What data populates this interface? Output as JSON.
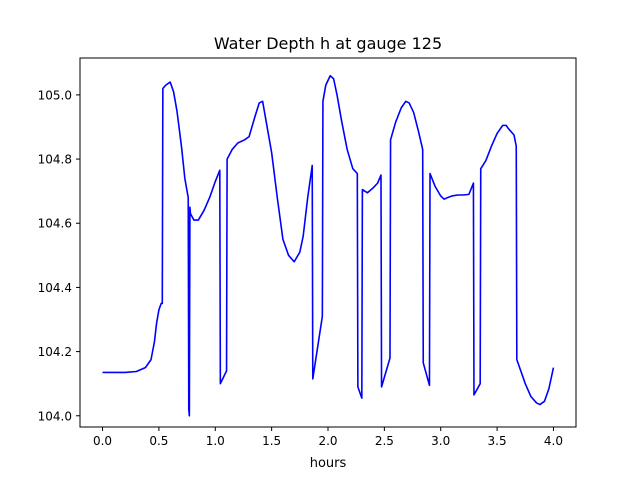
{
  "chart_data": {
    "type": "line",
    "title": "Water Depth h at gauge 125",
    "xlabel": "hours",
    "ylabel": "",
    "xlim": [
      -0.2,
      4.2
    ],
    "ylim": [
      103.965,
      105.115
    ],
    "xticks": [
      0.0,
      0.5,
      1.0,
      1.5,
      2.0,
      2.5,
      3.0,
      3.5,
      4.0
    ],
    "xtick_labels": [
      "0.0",
      "0.5",
      "1.0",
      "1.5",
      "2.0",
      "2.5",
      "3.0",
      "3.5",
      "4.0"
    ],
    "yticks": [
      104.0,
      104.2,
      104.4,
      104.6,
      104.8,
      105.0
    ],
    "ytick_labels": [
      "104.0",
      "104.2",
      "104.4",
      "104.6",
      "104.8",
      "105.0"
    ],
    "grid": false,
    "legend": "none",
    "series": [
      {
        "color": "#0000ff",
        "x": [
          0.0,
          0.05,
          0.2,
          0.3,
          0.38,
          0.43,
          0.46,
          0.48,
          0.5,
          0.52,
          0.53,
          0.535,
          0.56,
          0.6,
          0.63,
          0.66,
          0.7,
          0.73,
          0.76,
          0.765,
          0.77,
          0.775,
          0.78,
          0.81,
          0.85,
          0.9,
          0.95,
          1.0,
          1.04,
          1.045,
          1.1,
          1.105,
          1.15,
          1.2,
          1.26,
          1.3,
          1.35,
          1.39,
          1.42,
          1.45,
          1.5,
          1.55,
          1.6,
          1.65,
          1.7,
          1.75,
          1.78,
          1.82,
          1.86,
          1.865,
          1.95,
          1.955,
          1.98,
          2.02,
          2.05,
          2.08,
          2.12,
          2.17,
          2.22,
          2.26,
          2.265,
          2.3,
          2.305,
          2.35,
          2.4,
          2.44,
          2.47,
          2.475,
          2.55,
          2.555,
          2.6,
          2.65,
          2.69,
          2.72,
          2.76,
          2.8,
          2.84,
          2.845,
          2.9,
          2.905,
          2.95,
          3.0,
          3.03,
          3.06,
          3.1,
          3.15,
          3.2,
          3.25,
          3.29,
          3.295,
          3.35,
          3.355,
          3.4,
          3.45,
          3.5,
          3.55,
          3.58,
          3.6,
          3.65,
          3.67,
          3.675,
          3.7,
          3.75,
          3.8,
          3.85,
          3.88,
          3.92,
          3.96,
          4.0
        ],
        "y": [
          104.135,
          104.135,
          104.135,
          104.138,
          104.15,
          104.175,
          104.23,
          104.29,
          104.33,
          104.35,
          104.35,
          105.02,
          105.03,
          105.04,
          105.01,
          104.95,
          104.84,
          104.74,
          104.68,
          104.02,
          104.0,
          104.65,
          104.63,
          104.61,
          104.61,
          104.64,
          104.68,
          104.73,
          104.765,
          104.1,
          104.14,
          104.8,
          104.83,
          104.85,
          104.86,
          104.87,
          104.93,
          104.975,
          104.98,
          104.92,
          104.82,
          104.68,
          104.55,
          104.5,
          104.48,
          104.51,
          104.56,
          104.68,
          104.78,
          104.115,
          104.31,
          104.98,
          105.03,
          105.06,
          105.05,
          105.0,
          104.92,
          104.83,
          104.77,
          104.755,
          104.09,
          104.055,
          104.705,
          104.695,
          104.71,
          104.725,
          104.75,
          104.09,
          104.18,
          104.86,
          104.915,
          104.96,
          104.98,
          104.975,
          104.945,
          104.89,
          104.83,
          104.165,
          104.095,
          104.755,
          104.715,
          104.685,
          104.675,
          104.68,
          104.685,
          104.688,
          104.688,
          104.69,
          104.725,
          104.065,
          104.1,
          104.77,
          104.795,
          104.84,
          104.88,
          104.905,
          104.905,
          104.895,
          104.875,
          104.84,
          104.175,
          104.15,
          104.1,
          104.06,
          104.04,
          104.035,
          104.045,
          104.085,
          104.15
        ]
      }
    ]
  }
}
